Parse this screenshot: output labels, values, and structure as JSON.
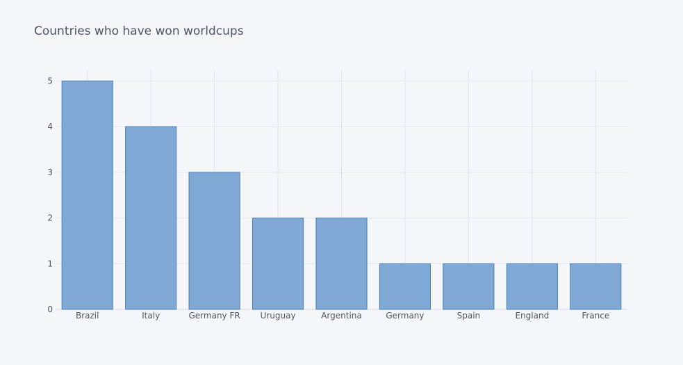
{
  "chart_data": {
    "type": "bar",
    "title": "Countries who have won worldcups",
    "xlabel": "",
    "ylabel": "",
    "categories": [
      "Brazil",
      "Italy",
      "Germany FR",
      "Uruguay",
      "Argentina",
      "Germany",
      "Spain",
      "England",
      "France"
    ],
    "values": [
      5,
      4,
      3,
      2,
      2,
      1,
      1,
      1,
      1
    ],
    "ylim": [
      0,
      5.25
    ],
    "yticks": [
      0,
      1,
      2,
      3,
      4,
      5
    ],
    "grid": true,
    "legend": "none",
    "colors": {
      "bar_fill": "#7fa9d4",
      "bar_stroke": "#4a7fb8",
      "background": "#f5f6f9",
      "grid": "#e1e5ed",
      "text": "#4d5663"
    }
  }
}
